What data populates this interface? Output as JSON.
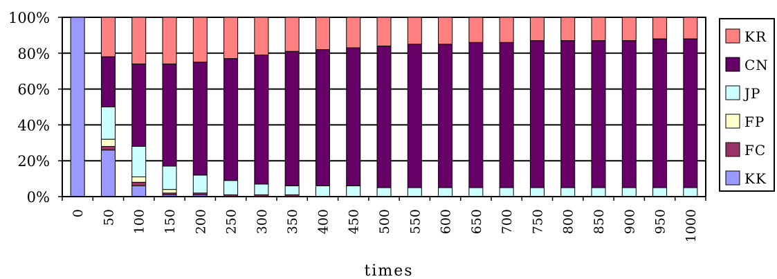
{
  "chart_data": {
    "type": "bar",
    "stacked": true,
    "percent": true,
    "xlabel": "times",
    "ylabel": "",
    "ylim": [
      0,
      100
    ],
    "y_ticks": [
      "0%",
      "20%",
      "40%",
      "60%",
      "80%",
      "100%"
    ],
    "grid": true,
    "legend_position": "right",
    "categories": [
      "0",
      "50",
      "100",
      "150",
      "200",
      "250",
      "300",
      "350",
      "400",
      "450",
      "500",
      "550",
      "600",
      "650",
      "700",
      "750",
      "800",
      "850",
      "900",
      "950",
      "1000"
    ],
    "series": [
      {
        "name": "KK",
        "color": "#9999ff",
        "values": [
          100,
          26,
          6,
          1,
          1,
          0,
          0,
          0,
          0,
          0,
          0,
          0,
          0,
          0,
          0,
          0,
          0,
          0,
          0,
          0,
          0
        ]
      },
      {
        "name": "FC",
        "color": "#993366",
        "values": [
          0,
          2,
          2,
          1,
          1,
          1,
          1,
          1,
          0,
          0,
          0,
          0,
          0,
          0,
          0,
          0,
          0,
          0,
          0,
          0,
          0
        ]
      },
      {
        "name": "FP",
        "color": "#ffffcc",
        "values": [
          0,
          4,
          3,
          2,
          0,
          0,
          0,
          0,
          0,
          0,
          0,
          0,
          0,
          0,
          0,
          0,
          0,
          0,
          0,
          0,
          0
        ]
      },
      {
        "name": "JP",
        "color": "#ccffff",
        "values": [
          0,
          18,
          17,
          13,
          10,
          8,
          6,
          5,
          6,
          6,
          5,
          5,
          5,
          5,
          5,
          5,
          5,
          5,
          5,
          5,
          5
        ]
      },
      {
        "name": "CN",
        "color": "#660066",
        "values": [
          0,
          28,
          46,
          57,
          63,
          68,
          72,
          75,
          76,
          77,
          79,
          80,
          80,
          81,
          81,
          82,
          82,
          82,
          82,
          83,
          83
        ]
      },
      {
        "name": "KR",
        "color": "#ff8080",
        "values": [
          0,
          22,
          26,
          26,
          25,
          23,
          21,
          19,
          18,
          17,
          16,
          15,
          15,
          14,
          14,
          13,
          13,
          13,
          13,
          12,
          12
        ]
      }
    ],
    "legend_order": [
      "KR",
      "CN",
      "JP",
      "FP",
      "FC",
      "KK"
    ]
  }
}
